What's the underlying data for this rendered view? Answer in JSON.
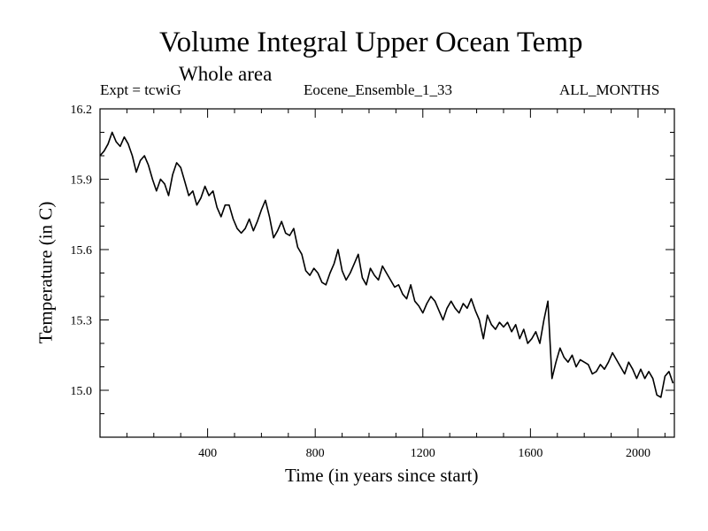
{
  "chart_data": {
    "type": "line",
    "title": "Volume Integral Upper Ocean Temp",
    "subtitle": "Whole area",
    "header_left": "Expt = tcwiG",
    "header_center": "Eocene_Ensemble_1_33",
    "header_right": "ALL_MONTHS",
    "xlabel": "Time (in years since start)",
    "ylabel": "Temperature (in C)",
    "xlim": [
      0,
      2135
    ],
    "ylim": [
      14.8,
      16.2
    ],
    "xticks": [
      400,
      800,
      1200,
      1600,
      2000
    ],
    "xtick_labels": [
      "400",
      "800",
      "1200",
      "1600",
      "2000"
    ],
    "yticks": [
      15.0,
      15.3,
      15.6,
      15.9,
      16.2
    ],
    "ytick_labels": [
      "15.0",
      "15.3",
      "15.6",
      "15.9",
      "16.2"
    ],
    "grid": false,
    "series": [
      {
        "x": [
          0,
          15,
          30,
          45,
          60,
          75,
          90,
          105,
          120,
          135,
          150,
          165,
          180,
          195,
          210,
          225,
          240,
          255,
          270,
          285,
          300,
          315,
          330,
          345,
          360,
          375,
          390,
          405,
          420,
          435,
          450,
          465,
          480,
          495,
          510,
          525,
          540,
          555,
          570,
          585,
          600,
          615,
          630,
          645,
          660,
          675,
          690,
          705,
          720,
          735,
          750,
          765,
          780,
          795,
          810,
          825,
          840,
          855,
          870,
          885,
          900,
          915,
          930,
          945,
          960,
          975,
          990,
          1005,
          1020,
          1035,
          1050,
          1065,
          1080,
          1095,
          1110,
          1125,
          1140,
          1155,
          1170,
          1185,
          1200,
          1215,
          1230,
          1245,
          1260,
          1275,
          1290,
          1305,
          1320,
          1335,
          1350,
          1365,
          1380,
          1395,
          1410,
          1425,
          1440,
          1455,
          1470,
          1485,
          1500,
          1515,
          1530,
          1545,
          1560,
          1575,
          1590,
          1605,
          1620,
          1635,
          1650,
          1665,
          1680,
          1695,
          1710,
          1725,
          1740,
          1755,
          1770,
          1785,
          1800,
          1815,
          1830,
          1845,
          1860,
          1875,
          1890,
          1905,
          1920,
          1935,
          1950,
          1965,
          1980,
          1995,
          2010,
          2025,
          2040,
          2055,
          2070,
          2085,
          2100,
          2115,
          2130
        ],
        "values": [
          16.0,
          16.02,
          16.05,
          16.1,
          16.06,
          16.04,
          16.08,
          16.05,
          16.0,
          15.93,
          15.98,
          16.0,
          15.96,
          15.9,
          15.85,
          15.9,
          15.88,
          15.83,
          15.92,
          15.97,
          15.95,
          15.89,
          15.83,
          15.85,
          15.79,
          15.82,
          15.87,
          15.83,
          15.85,
          15.78,
          15.74,
          15.79,
          15.79,
          15.73,
          15.69,
          15.67,
          15.69,
          15.73,
          15.68,
          15.72,
          15.77,
          15.81,
          15.74,
          15.65,
          15.68,
          15.72,
          15.67,
          15.66,
          15.69,
          15.61,
          15.58,
          15.51,
          15.49,
          15.52,
          15.5,
          15.46,
          15.45,
          15.5,
          15.54,
          15.6,
          15.51,
          15.47,
          15.5,
          15.54,
          15.58,
          15.48,
          15.45,
          15.52,
          15.49,
          15.47,
          15.53,
          15.5,
          15.47,
          15.44,
          15.45,
          15.41,
          15.39,
          15.45,
          15.38,
          15.36,
          15.33,
          15.37,
          15.4,
          15.38,
          15.34,
          15.3,
          15.35,
          15.38,
          15.35,
          15.33,
          15.37,
          15.35,
          15.39,
          15.34,
          15.3,
          15.22,
          15.32,
          15.28,
          15.26,
          15.29,
          15.27,
          15.29,
          15.25,
          15.28,
          15.22,
          15.26,
          15.2,
          15.22,
          15.25,
          15.2,
          15.3,
          15.38,
          15.05,
          15.12,
          15.18,
          15.14,
          15.12,
          15.15,
          15.1,
          15.13,
          15.12,
          15.11,
          15.07,
          15.08,
          15.11,
          15.09,
          15.12,
          15.16,
          15.13,
          15.1,
          15.07,
          15.12,
          15.09,
          15.05,
          15.09,
          15.05,
          15.08,
          15.05,
          14.98,
          14.97,
          15.06,
          15.08,
          15.03
        ]
      }
    ]
  }
}
